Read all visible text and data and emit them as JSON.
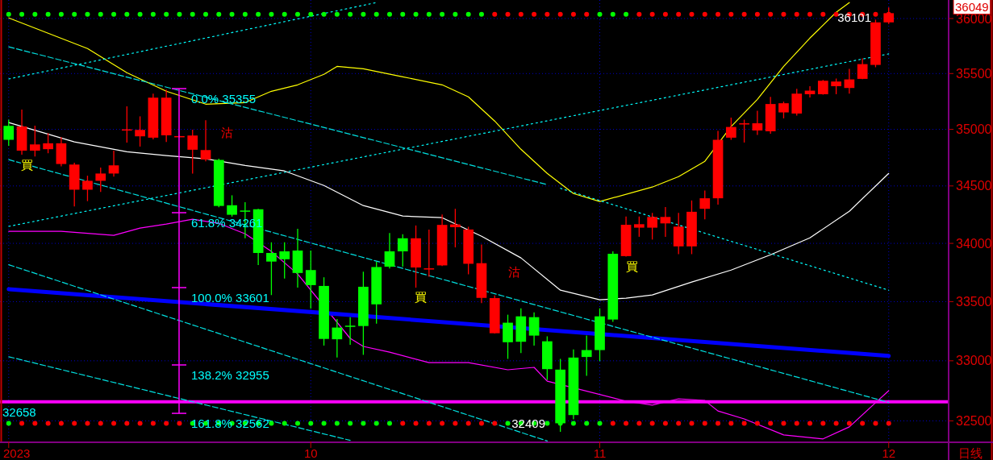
{
  "chart_data": {
    "type": "candlestick",
    "log": true,
    "grid": true,
    "categories": [
      "2023",
      null,
      null,
      null,
      null,
      null,
      null,
      null,
      null,
      null,
      null,
      null,
      null,
      null,
      null,
      null,
      null,
      null,
      null,
      null,
      null,
      null,
      null,
      "10",
      null,
      null,
      null,
      null,
      null,
      null,
      null,
      null,
      null,
      null,
      null,
      null,
      null,
      null,
      null,
      null,
      null,
      null,
      null,
      null,
      null,
      "11",
      null,
      null,
      null,
      null,
      null,
      null,
      null,
      null,
      null,
      null,
      null,
      null,
      null,
      null,
      null,
      null,
      null,
      null,
      null,
      null,
      null,
      "12"
    ],
    "ylim": [
      32330,
      36170
    ],
    "yticks": [
      32500,
      33000,
      33500,
      34000,
      34500,
      35000,
      35500,
      36000
    ],
    "ohlc": [
      [
        35031,
        35086,
        34854,
        34907
      ],
      [
        34811,
        35177,
        34776,
        35026
      ],
      [
        34811,
        35033,
        34759,
        34866
      ],
      [
        34824,
        34966,
        34788,
        34876
      ],
      [
        34693,
        34930,
        34673,
        34876
      ],
      [
        34467,
        34704,
        34320,
        34688
      ],
      [
        34467,
        34590,
        34367,
        34545
      ],
      [
        34545,
        34661,
        34447,
        34609
      ],
      [
        34609,
        34811,
        34581,
        34681
      ],
      [
        34995,
        35206,
        34883,
        35000
      ],
      [
        34938,
        35116,
        34847,
        34995
      ],
      [
        34926,
        35319,
        34911,
        35283
      ],
      [
        34947,
        35355,
        34888,
        35283
      ],
      [
        34935,
        34945,
        34930,
        34940
      ],
      [
        34819,
        34997,
        34609,
        34945
      ],
      [
        34733,
        35081,
        34716,
        34816
      ],
      [
        34729,
        34740,
        34313,
        34325
      ],
      [
        34331,
        34418,
        34232,
        34248
      ],
      [
        34285,
        34358,
        34044,
        34280
      ],
      [
        34296,
        34300,
        33813,
        33917
      ],
      [
        33917,
        34009,
        33556,
        33843
      ],
      [
        33931,
        34009,
        33697,
        33863
      ],
      [
        33938,
        34127,
        33619,
        33745
      ],
      [
        33770,
        33938,
        33441,
        33641
      ],
      [
        33634,
        33708,
        33128,
        33184
      ],
      [
        33280,
        33353,
        33027,
        33181
      ],
      [
        33296,
        33367,
        33135,
        33290
      ],
      [
        33627,
        33756,
        33050,
        33293
      ],
      [
        33796,
        33840,
        33313,
        33477
      ],
      [
        33931,
        34090,
        33784,
        33799
      ],
      [
        34044,
        34079,
        33799,
        33931
      ],
      [
        33792,
        34155,
        33619,
        34044
      ],
      [
        33780,
        34120,
        33713,
        33785
      ],
      [
        33810,
        34250,
        33805,
        34160
      ],
      [
        34140,
        34300,
        33965,
        34164
      ],
      [
        33824,
        34144,
        33734,
        34120
      ],
      [
        33532,
        33990,
        33488,
        33829
      ],
      [
        33232,
        33553,
        33229,
        33530
      ],
      [
        33321,
        33389,
        33016,
        33156
      ],
      [
        33375,
        33443,
        33065,
        33160
      ],
      [
        33368,
        33409,
        33128,
        33212
      ],
      [
        33164,
        33206,
        32840,
        32930
      ],
      [
        32926,
        33016,
        32409,
        32480
      ],
      [
        33027,
        33095,
        32513,
        32548
      ],
      [
        33090,
        33213,
        32875,
        33032
      ],
      [
        33375,
        33443,
        32997,
        33090
      ],
      [
        33910,
        33931,
        33329,
        33348
      ],
      [
        33890,
        34233,
        33886,
        34161
      ],
      [
        34136,
        34233,
        34057,
        34166
      ],
      [
        34136,
        34264,
        34033,
        34229
      ],
      [
        34173,
        34316,
        34057,
        34229
      ],
      [
        33974,
        34264,
        33907,
        34145
      ],
      [
        33974,
        34373,
        33907,
        34274
      ],
      [
        34300,
        34460,
        34208,
        34392
      ],
      [
        34392,
        34986,
        34337,
        34907
      ],
      [
        34926,
        35105,
        34907,
        35021
      ],
      [
        35045,
        35086,
        34883,
        35054
      ],
      [
        34990,
        35165,
        34950,
        35054
      ],
      [
        34983,
        35290,
        34961,
        35226
      ],
      [
        35151,
        35247,
        35098,
        35233
      ],
      [
        35141,
        35363,
        35122,
        35319
      ],
      [
        35314,
        35386,
        35285,
        35346
      ],
      [
        35314,
        35442,
        35310,
        35435
      ],
      [
        35386,
        35455,
        35314,
        35428
      ],
      [
        35370,
        35542,
        35319,
        35447
      ],
      [
        35452,
        35637,
        35450,
        35585
      ],
      [
        35578,
        35990,
        35557,
        35965
      ],
      [
        35965,
        36101,
        35950,
        36049
      ]
    ],
    "colors": [
      "#00ff00",
      "#ff0000",
      "#ff0000",
      "#ff0000",
      "#ff0000",
      "#ff0000",
      "#ff0000",
      "#ff0000",
      "#ff0000",
      "#ff0000",
      "#ff0000",
      "#ff0000",
      "#ff0000",
      "#ff0000",
      "#ff0000",
      "#ff0000",
      "#00ff00",
      "#00ff00",
      "#00ff00",
      "#00ff00",
      "#00ff00",
      "#00ff00",
      "#00ff00",
      "#00ff00",
      "#00ff00",
      "#00ff00",
      "#00ff00",
      "#00ff00",
      "#00ff00",
      "#00ff00",
      "#00ff00",
      "#ff0000",
      "#ff0000",
      "#ff0000",
      "#ff0000",
      "#ff0000",
      "#ff0000",
      "#ff0000",
      "#00ff00",
      "#00ff00",
      "#00ff00",
      "#00ff00",
      "#00ff00",
      "#00ff00",
      "#00ff00",
      "#00ff00",
      "#00ff00",
      "#ff0000",
      "#ff0000",
      "#ff0000",
      "#ff0000",
      "#ff0000",
      "#ff0000",
      "#ff0000",
      "#ff0000",
      "#ff0000",
      "#ff0000",
      "#ff0000",
      "#ff0000",
      "#ff0000",
      "#ff0000",
      "#ff0000",
      "#ff0000",
      "#ff0000",
      "#ff0000",
      "#ff0000",
      "#ff0000",
      "#ff0000"
    ],
    "series": [
      {
        "type": "line",
        "color": "#ffffff",
        "values": [
          35060,
          null,
          null,
          null,
          null,
          34888,
          null,
          null,
          null,
          34802,
          null,
          null,
          34767,
          null,
          null,
          34738,
          null,
          null,
          34681,
          null,
          null,
          34632,
          null,
          null,
          34504,
          null,
          null,
          34328,
          null,
          null,
          34237,
          null,
          null,
          34223,
          null,
          null,
          34062,
          null,
          null,
          33875,
          null,
          null,
          33598,
          null,
          null,
          33516,
          null,
          33530,
          null,
          33557,
          null,
          null,
          33667,
          null,
          null,
          33770,
          null,
          null,
          33902,
          null,
          null,
          34048,
          null,
          null,
          34279,
          null,
          null,
          34610
        ]
      },
      {
        "type": "line",
        "color": "#ffff00",
        "values": [
          36005,
          null,
          null,
          null,
          null,
          null,
          35726,
          null,
          null,
          35507,
          null,
          null,
          35340,
          null,
          null,
          35225,
          null,
          null,
          35239,
          null,
          35340,
          null,
          35398,
          null,
          35493,
          35565,
          null,
          35543,
          null,
          null,
          35471,
          null,
          null,
          35398,
          null,
          35290,
          null,
          35074,
          null,
          34823,
          null,
          34610,
          null,
          34434,
          null,
          34364,
          null,
          null,
          null,
          34490,
          null,
          34582,
          null,
          34717,
          null,
          35024,
          null,
          35268,
          null,
          35565,
          null,
          35821,
          null,
          36057,
          36146,
          null,
          null,
          null
        ]
      },
      {
        "type": "line",
        "color": "#ff00ff",
        "values": [
          34104,
          null,
          null,
          null,
          34104,
          null,
          null,
          null,
          34069,
          null,
          34132,
          null,
          34167,
          null,
          34209,
          null,
          34174,
          null,
          34083,
          null,
          33930,
          null,
          33736,
          null,
          null,
          null,
          33189,
          33121,
          null,
          33073,
          null,
          null,
          32985,
          null,
          null,
          32985,
          null,
          null,
          32925,
          null,
          32945,
          32830,
          null,
          null,
          null,
          null,
          null,
          32663,
          null,
          32630,
          null,
          32683,
          null,
          32669,
          32582,
          null,
          32516,
          null,
          null,
          32384,
          null,
          null,
          32351,
          null,
          32450,
          null,
          32650,
          32750
        ]
      },
      {
        "type": "line",
        "color": "#0000ff",
        "values": [
          33607,
          null,
          null,
          null,
          null,
          null,
          null,
          null,
          null,
          null,
          null,
          null,
          null,
          null,
          null,
          null,
          null,
          null,
          null,
          null,
          null,
          null,
          null,
          null,
          null,
          null,
          null,
          null,
          null,
          null,
          null,
          null,
          null,
          null,
          null,
          null,
          null,
          null,
          null,
          null,
          null,
          null,
          null,
          null,
          null,
          null,
          null,
          null,
          null,
          null,
          null,
          null,
          null,
          null,
          null,
          null,
          null,
          null,
          null,
          null,
          null,
          null,
          null,
          null,
          null,
          null,
          null,
          33041
        ]
      },
      {
        "type": "line",
        "color": "#00ffff",
        "line_style": "dotted",
        "values": [
          34147,
          null,
          null,
          null,
          null,
          null,
          null,
          null,
          null,
          null,
          null,
          null,
          null,
          null,
          null,
          null,
          null,
          null,
          null,
          null,
          null,
          null,
          null,
          null,
          null,
          null,
          null,
          null,
          null,
          null,
          null,
          null,
          null,
          null,
          null,
          null,
          null,
          null,
          null,
          null,
          null,
          null,
          null,
          null,
          null,
          null,
          null,
          null,
          null,
          null,
          null,
          null,
          null,
          null,
          null,
          null,
          null,
          null,
          null,
          null,
          null,
          null,
          null,
          null,
          null,
          null,
          null,
          35678
        ]
      },
      {
        "type": "line",
        "color": "#00ffff",
        "line_style": "dotted",
        "values": [
          35451,
          null,
          null,
          null,
          null,
          null,
          null,
          null,
          null,
          null,
          null,
          null,
          null,
          null,
          null,
          null,
          null,
          null,
          null,
          null,
          null,
          null,
          null,
          null,
          null,
          null,
          null,
          null,
          36146,
          null,
          null,
          null,
          null,
          null,
          null,
          null,
          null,
          null,
          null,
          null,
          null,
          null,
          null,
          null,
          null,
          null,
          null,
          null,
          null,
          null,
          null,
          null,
          null,
          null,
          null,
          null,
          null,
          null,
          null,
          null,
          null,
          null,
          null,
          null,
          null,
          null,
          null,
          null
        ]
      },
      {
        "type": "line",
        "color": "#00e0e0",
        "line_style": "dashed",
        "values": [
          35742,
          null,
          null,
          null,
          null,
          null,
          null,
          null,
          null,
          null,
          null,
          null,
          null,
          null,
          null,
          null,
          null,
          null,
          null,
          null,
          null,
          null,
          null,
          null,
          null,
          null,
          null,
          null,
          null,
          null,
          null,
          null,
          null,
          null,
          null,
          null,
          null,
          null,
          null,
          null,
          null,
          34511,
          null,
          null,
          null,
          null,
          null,
          null,
          null,
          null,
          null,
          null,
          null,
          null,
          null,
          null,
          null,
          null,
          null,
          null,
          null,
          null,
          null,
          null,
          null,
          null,
          null,
          null
        ]
      },
      {
        "type": "line",
        "color": "#00ffff",
        "line_style": "dotted",
        "values": [
          null,
          null,
          null,
          null,
          null,
          null,
          null,
          null,
          null,
          null,
          null,
          null,
          null,
          null,
          null,
          null,
          null,
          null,
          null,
          null,
          null,
          null,
          null,
          null,
          null,
          null,
          null,
          null,
          null,
          null,
          null,
          null,
          null,
          null,
          null,
          null,
          null,
          null,
          null,
          null,
          null,
          null,
          34479,
          null,
          null,
          null,
          null,
          null,
          null,
          null,
          null,
          null,
          null,
          null,
          null,
          null,
          null,
          null,
          null,
          null,
          null,
          null,
          null,
          null,
          null,
          null,
          null,
          33598
        ]
      },
      {
        "type": "line",
        "color": "#00e0e0",
        "line_style": "dashed",
        "values": [
          34731,
          null,
          null,
          null,
          null,
          null,
          null,
          null,
          null,
          null,
          null,
          null,
          null,
          null,
          null,
          null,
          null,
          null,
          null,
          null,
          null,
          null,
          null,
          null,
          null,
          null,
          null,
          null,
          null,
          null,
          null,
          null,
          null,
          null,
          null,
          null,
          null,
          null,
          null,
          null,
          null,
          null,
          null,
          null,
          null,
          null,
          null,
          null,
          null,
          null,
          null,
          null,
          null,
          null,
          null,
          null,
          null,
          null,
          null,
          null,
          null,
          null,
          null,
          null,
          null,
          null,
          null,
          32653
        ]
      },
      {
        "type": "line",
        "color": "#00e0e0",
        "line_style": "dashed",
        "values": [
          33816,
          null,
          null,
          null,
          null,
          null,
          null,
          null,
          null,
          null,
          null,
          null,
          null,
          null,
          null,
          null,
          null,
          null,
          null,
          null,
          null,
          null,
          null,
          null,
          null,
          null,
          null,
          null,
          null,
          null,
          null,
          null,
          null,
          null,
          null,
          null,
          null,
          null,
          null,
          null,
          null,
          32334,
          null,
          null,
          null,
          null,
          null,
          null,
          null,
          null,
          null,
          null,
          null,
          null,
          null,
          null,
          null,
          null,
          null,
          null,
          null,
          null,
          null,
          null,
          null,
          null,
          null,
          null
        ]
      },
      {
        "type": "line",
        "color": "#00e0e0",
        "line_style": "dashed",
        "values": [
          33034,
          null,
          null,
          null,
          null,
          null,
          null,
          null,
          null,
          null,
          null,
          null,
          null,
          null,
          null,
          null,
          null,
          null,
          null,
          null,
          null,
          null,
          null,
          null,
          null,
          null,
          32339,
          null,
          null,
          null,
          null,
          null,
          null,
          null,
          null,
          null,
          null,
          null,
          null,
          null,
          null,
          null,
          null,
          null,
          null,
          null,
          null,
          null,
          null,
          null,
          null,
          null,
          null,
          null,
          null,
          null,
          null,
          null,
          null,
          null,
          null,
          null,
          null,
          null,
          null,
          null,
          null,
          null
        ]
      },
      {
        "type": "scatter",
        "marker": "circle",
        "values": [
          36039,
          36039,
          36039,
          36039,
          36039,
          36039,
          36039,
          36039,
          36039,
          36039,
          36039,
          36039,
          36039,
          36039,
          36039,
          36039,
          36039,
          36039,
          36039,
          36039,
          36039,
          36039,
          36039,
          36039,
          36039,
          36039,
          36039,
          36039,
          36039,
          36039,
          36039,
          36039,
          36039,
          36039,
          36039,
          36039,
          36039,
          36039,
          36039,
          36039,
          36039,
          36039,
          36039,
          36039,
          36039,
          36039,
          36039,
          36039,
          36039,
          36039,
          36039,
          36039,
          36039,
          36039,
          36039,
          36039,
          36039,
          36039,
          36039,
          36039,
          36039,
          36039,
          36039,
          36039,
          36039,
          36039,
          36039,
          36039
        ],
        "colors": [
          "#00ff00",
          "#00ff00",
          "#00ff00",
          "#00ff00",
          "#00ff00",
          "#00ff00",
          "#00ff00",
          "#00ff00",
          "#00ff00",
          "#00ff00",
          "#00ff00",
          "#00ff00",
          "#00ff00",
          "#00ff00",
          "#00ff00",
          "#00ff00",
          "#00ff00",
          "#00ff00",
          "#00ff00",
          "#00ff00",
          "#00ff00",
          "#00ff00",
          "#00ff00",
          "#00ff00",
          "#00ff00",
          "#00ff00",
          "#00ff00",
          "#00ff00",
          "#00ff00",
          "#00ff00",
          "#00ff00",
          "#00ff00",
          "#00ff00",
          "#00ff00",
          "#00ff00",
          "#00ff00",
          "#00ff00",
          "#ff0000",
          "#ff0000",
          "#ff0000",
          "#ff0000",
          "#ff0000",
          "#ff0000",
          "#ff0000",
          "#ff0000",
          "#00ff00",
          "#00ff00",
          "#00ff00",
          "#ff0000",
          "#ff0000",
          "#ff0000",
          "#ff0000",
          "#ff0000",
          "#ff0000",
          "#ff0000",
          "#ff0000",
          "#ff0000",
          "#ff0000",
          "#ff0000",
          "#ff0000",
          "#ff0000",
          "#ff0000",
          "#ff0000",
          "#ff0000",
          "#ff0000",
          "#ff0000",
          "#ff0000",
          "#ff0000"
        ]
      },
      {
        "type": "scatter",
        "marker": "circle",
        "values": [
          32480,
          32480,
          32480,
          32480,
          32480,
          32480,
          32480,
          32480,
          32480,
          32480,
          32480,
          32480,
          32480,
          32480,
          32480,
          32480,
          32480,
          32480,
          32480,
          32480,
          32480,
          32480,
          32480,
          32480,
          32480,
          32480,
          32480,
          32480,
          32480,
          32480,
          32480,
          32480,
          32480,
          32480,
          32480,
          32480,
          32480,
          32480,
          32480,
          32480,
          32480,
          32480,
          32480,
          32480,
          32480,
          32480,
          32480,
          32480,
          32480,
          32480,
          32480,
          32480,
          32480,
          32480,
          32480,
          32480,
          32480,
          32480,
          32480,
          32480,
          32480,
          32480,
          32480,
          32480,
          32480,
          32480,
          32480,
          32480
        ],
        "colors": [
          "#00ff00",
          "#ff0000",
          "#ff0000",
          "#ff0000",
          "#ff0000",
          "#ff0000",
          "#ff0000",
          "#ff0000",
          "#ff0000",
          "#ff0000",
          "#ff0000",
          "#ff0000",
          "#ff0000",
          "#ff0000",
          "#00ff00",
          "#00ff00",
          "#00ff00",
          "#00ff00",
          "#00ff00",
          "#00ff00",
          "#00ff00",
          "#00ff00",
          "#00ff00",
          "#00ff00",
          "#00ff00",
          "#00ff00",
          "#00ff00",
          "#00ff00",
          "#00ff00",
          "#00ff00",
          "#ff0000",
          "#ff0000",
          "#ff0000",
          "#ff0000",
          "#ff0000",
          "#ff0000",
          "#ff0000",
          "#ff0000",
          "#00ff00",
          "#00ff00",
          "#00ff00",
          "#00ff00",
          "#00ff00",
          "#00ff00",
          "#00ff00",
          "#00ff00",
          "#ff0000",
          "#ff0000",
          "#ff0000",
          "#ff0000",
          "#ff0000",
          "#ff0000",
          "#ff0000",
          "#ff0000",
          "#ff0000",
          "#ff0000",
          "#ff0000",
          "#ff0000",
          "#ff0000",
          "#ff0000",
          "#ff0000",
          "#ff0000",
          "#ff0000",
          "#ff0000",
          "#ff0000",
          "#ff0000",
          "#ff0000",
          "#ff0000"
        ]
      }
    ],
    "ref_lines": [
      {
        "axis": "y",
        "value": 32658,
        "label": "32658",
        "color": "#ff00ff"
      }
    ],
    "annotations": [
      "0.0% 35355",
      "61.8% 34261",
      "100.0% 33601",
      "138.2% 32955",
      {
        "text": "161.8% 32562",
        "y": 32562
      },
      "36101",
      "32409",
      "36049",
      "買",
      "買",
      "買",
      "沽",
      "沽",
      "日线"
    ]
  }
}
